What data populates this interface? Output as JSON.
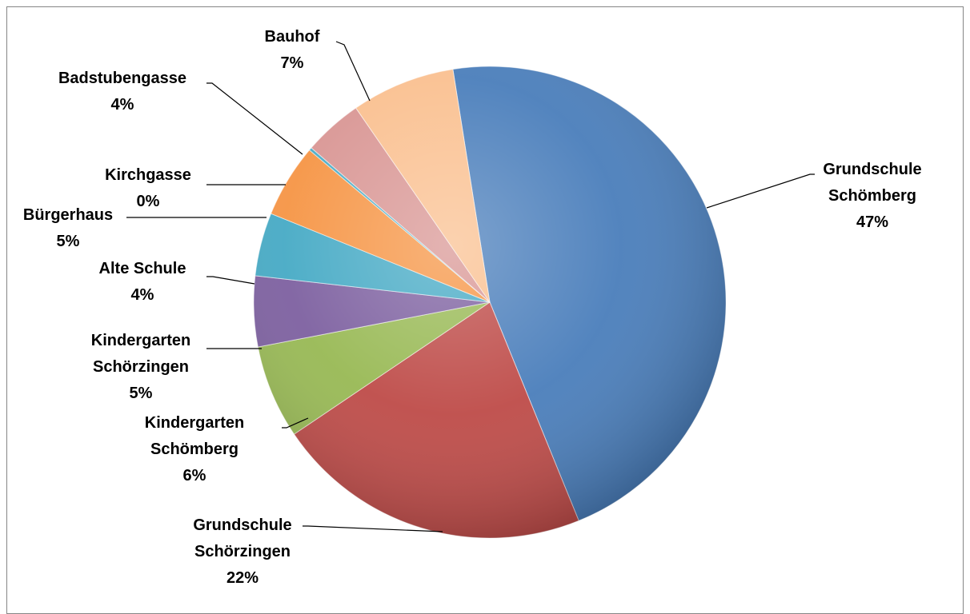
{
  "chart_data": {
    "type": "pie",
    "title": "",
    "slices": [
      {
        "label": [
          "Grundschule",
          "Schömberg"
        ],
        "pct_label": "47%",
        "value": 47,
        "color": "#4a7ebb"
      },
      {
        "label": [
          "Grundschule",
          "Schörzingen"
        ],
        "pct_label": "22%",
        "value": 22,
        "color": "#be4b48"
      },
      {
        "label": [
          "Kindergarten",
          "Schömberg"
        ],
        "pct_label": "6%",
        "value": 6.5,
        "color": "#98b954"
      },
      {
        "label": [
          "Kindergarten",
          "Schörzingen"
        ],
        "pct_label": "5%",
        "value": 4.9,
        "color": "#7d60a0"
      },
      {
        "label": [
          "Alte Schule"
        ],
        "pct_label": "4%",
        "value": 4.4,
        "color": "#46aac5"
      },
      {
        "label": [
          "Bürgerhaus"
        ],
        "pct_label": "5%",
        "value": 5.1,
        "color": "#f69545"
      },
      {
        "label": [
          "Kirchgasse"
        ],
        "pct_label": "0%",
        "value": 0.2,
        "color": "#4bacc6"
      },
      {
        "label": [
          "Badstubengasse"
        ],
        "pct_label": "4%",
        "value": 4.1,
        "color": "#d99694"
      },
      {
        "label": [
          "Bauhof"
        ],
        "pct_label": "7%",
        "value": 7.2,
        "color": "#fac090"
      }
    ]
  }
}
